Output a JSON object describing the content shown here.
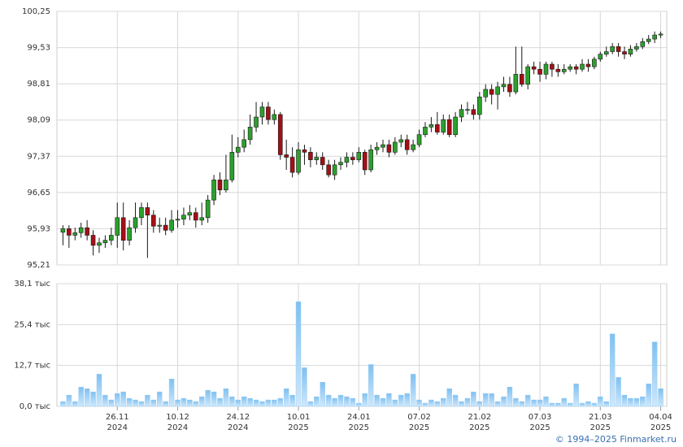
{
  "chart_data": [
    {
      "type": "candlestick",
      "colors": {
        "up": "#2ca02c",
        "down": "#a50f15",
        "outline": "#1a1a1a"
      },
      "xlim": [
        -1,
        100
      ],
      "ylim": [
        95.21,
        100.25
      ],
      "yticks": [
        {
          "value": 95.21,
          "label": "95,21"
        },
        {
          "value": 95.93,
          "label": "95,93"
        },
        {
          "value": 96.65,
          "label": "96,65"
        },
        {
          "value": 97.37,
          "label": "97,37"
        },
        {
          "value": 98.09,
          "label": "98,09"
        },
        {
          "value": 98.81,
          "label": "98,81"
        },
        {
          "value": 99.53,
          "label": "99,53"
        },
        {
          "value": 100.25,
          "label": "100,25"
        }
      ],
      "grid": true,
      "open": [
        95.86,
        95.93,
        95.8,
        95.85,
        95.95,
        95.8,
        95.6,
        95.65,
        95.7,
        95.8,
        96.15,
        95.7,
        95.95,
        96.15,
        96.35,
        96.2,
        95.98,
        96.0,
        95.9,
        96.1,
        96.12,
        96.2,
        96.25,
        96.1,
        96.15,
        96.5,
        96.9,
        96.7,
        96.9,
        97.45,
        97.55,
        97.7,
        97.95,
        98.15,
        98.35,
        98.1,
        98.2,
        97.4,
        97.35,
        97.05,
        97.5,
        97.45,
        97.3,
        97.35,
        97.2,
        97.0,
        97.2,
        97.25,
        97.35,
        97.3,
        97.45,
        97.1,
        97.5,
        97.55,
        97.6,
        97.45,
        97.65,
        97.7,
        97.5,
        97.6,
        97.8,
        97.95,
        98.0,
        97.85,
        98.1,
        97.8,
        98.15,
        98.3,
        98.3,
        98.2,
        98.55,
        98.7,
        98.6,
        98.75,
        98.8,
        98.65,
        99.0,
        98.8,
        99.15,
        99.1,
        99.0,
        99.2,
        99.1,
        99.05,
        99.1,
        99.15,
        99.1,
        99.2,
        99.15,
        99.3,
        99.4,
        99.45,
        99.55,
        99.45,
        99.4,
        99.5,
        99.55,
        99.65,
        99.7,
        99.78
      ],
      "high": [
        96.0,
        96.0,
        95.95,
        96.05,
        96.1,
        95.9,
        95.75,
        95.8,
        95.95,
        96.45,
        96.45,
        96.1,
        96.45,
        96.45,
        96.45,
        96.3,
        96.15,
        96.15,
        96.3,
        96.3,
        96.35,
        96.4,
        96.35,
        96.45,
        96.6,
        97.0,
        97.05,
        97.4,
        97.8,
        97.75,
        97.9,
        98.2,
        98.45,
        98.45,
        98.45,
        98.3,
        98.25,
        97.7,
        97.55,
        97.65,
        97.6,
        97.55,
        97.45,
        97.45,
        97.3,
        97.3,
        97.35,
        97.45,
        97.45,
        97.55,
        97.5,
        97.6,
        97.65,
        97.7,
        97.7,
        97.75,
        97.8,
        97.8,
        97.7,
        97.9,
        98.05,
        98.15,
        98.25,
        98.2,
        98.2,
        98.25,
        98.4,
        98.45,
        98.4,
        98.65,
        98.8,
        98.8,
        98.85,
        98.95,
        98.95,
        99.55,
        99.55,
        99.2,
        99.25,
        99.25,
        99.25,
        99.25,
        99.2,
        99.2,
        99.2,
        99.2,
        99.3,
        99.3,
        99.35,
        99.45,
        99.55,
        99.62,
        99.62,
        99.55,
        99.58,
        99.62,
        99.72,
        99.78,
        99.85,
        99.85
      ],
      "low": [
        95.6,
        95.55,
        95.7,
        95.75,
        95.7,
        95.4,
        95.45,
        95.55,
        95.6,
        95.55,
        95.5,
        95.6,
        95.85,
        96.0,
        95.35,
        95.85,
        95.85,
        95.8,
        95.85,
        95.95,
        96.0,
        96.1,
        95.95,
        96.0,
        96.05,
        96.4,
        96.6,
        96.65,
        96.85,
        97.35,
        97.45,
        97.6,
        97.85,
        98.0,
        98.0,
        98.0,
        97.3,
        97.1,
        96.95,
        97.0,
        97.2,
        97.15,
        97.2,
        97.1,
        96.95,
        96.9,
        97.1,
        97.15,
        97.2,
        97.25,
        97.0,
        97.05,
        97.4,
        97.45,
        97.35,
        97.4,
        97.55,
        97.4,
        97.45,
        97.55,
        97.75,
        97.85,
        97.8,
        97.8,
        97.75,
        97.75,
        98.05,
        98.2,
        98.1,
        98.1,
        98.45,
        98.4,
        98.3,
        98.65,
        98.55,
        98.6,
        98.75,
        98.7,
        99.0,
        98.85,
        98.9,
        98.95,
        98.95,
        99.0,
        99.05,
        99.0,
        99.05,
        99.05,
        99.1,
        99.25,
        99.35,
        99.4,
        99.35,
        99.3,
        99.35,
        99.45,
        99.5,
        99.6,
        99.62,
        99.72
      ],
      "close": [
        95.93,
        95.8,
        95.85,
        95.95,
        95.8,
        95.6,
        95.65,
        95.7,
        95.8,
        96.15,
        95.7,
        95.95,
        96.15,
        96.35,
        96.2,
        95.98,
        96.0,
        95.9,
        96.1,
        96.12,
        96.2,
        96.25,
        96.1,
        96.15,
        96.5,
        96.9,
        96.7,
        96.9,
        97.45,
        97.55,
        97.7,
        97.95,
        98.15,
        98.35,
        98.1,
        98.2,
        97.4,
        97.35,
        97.05,
        97.5,
        97.45,
        97.3,
        97.35,
        97.2,
        97.0,
        97.2,
        97.25,
        97.35,
        97.3,
        97.45,
        97.1,
        97.5,
        97.55,
        97.6,
        97.45,
        97.65,
        97.7,
        97.5,
        97.6,
        97.8,
        97.95,
        98.0,
        97.85,
        98.1,
        97.8,
        98.15,
        98.3,
        98.3,
        98.2,
        98.55,
        98.7,
        98.6,
        98.75,
        98.8,
        98.65,
        99.0,
        98.8,
        99.15,
        99.1,
        99.0,
        99.2,
        99.1,
        99.05,
        99.1,
        99.15,
        99.1,
        99.2,
        99.15,
        99.3,
        99.4,
        99.45,
        99.55,
        99.45,
        99.4,
        99.5,
        99.55,
        99.65,
        99.7,
        99.78,
        99.8
      ]
    },
    {
      "type": "bar",
      "color": "#9fd0f5",
      "xlim": [
        -1,
        100
      ],
      "ylim": [
        0,
        38.1
      ],
      "yticks": [
        {
          "value": 0,
          "label": "0,0 тыс"
        },
        {
          "value": 12.7,
          "label": "12,7 тыс"
        },
        {
          "value": 25.4,
          "label": "25,4 тыс"
        },
        {
          "value": 38.1,
          "label": "38,1 тыс"
        }
      ],
      "xticks": [
        {
          "value": 9,
          "label": "26.11 2024"
        },
        {
          "value": 19,
          "label": "10.12 2024"
        },
        {
          "value": 29,
          "label": "24.12 2024"
        },
        {
          "value": 39,
          "label": "10.01 2025"
        },
        {
          "value": 49,
          "label": "24.01 2025"
        },
        {
          "value": 59,
          "label": "07.02 2025"
        },
        {
          "value": 69,
          "label": "21.02 2025"
        },
        {
          "value": 79,
          "label": "07.03 2025"
        },
        {
          "value": 89,
          "label": "21.03 2025"
        },
        {
          "value": 99,
          "label": "04.04 2025"
        }
      ],
      "grid": true,
      "values": [
        1.5,
        3.5,
        1.5,
        6,
        5.5,
        4.5,
        10,
        3.5,
        2,
        4,
        4.5,
        2.5,
        2,
        1.5,
        3.5,
        2,
        4.5,
        1.5,
        8.5,
        2,
        2.5,
        2,
        1.5,
        3,
        5,
        4.5,
        2.5,
        5.5,
        3,
        2,
        3,
        2.5,
        2,
        1.5,
        2,
        2,
        2.5,
        5.5,
        3.5,
        32.5,
        12,
        1.5,
        3,
        7.5,
        3.5,
        2.5,
        3.5,
        3,
        2.5,
        1,
        4,
        13,
        3.5,
        2.5,
        4,
        2,
        3.5,
        4,
        10,
        2,
        1,
        2,
        1.5,
        2.5,
        5.5,
        3.5,
        1.5,
        2.5,
        4.5,
        1.5,
        4,
        4,
        1.5,
        3,
        6,
        2.5,
        1.5,
        3.5,
        2,
        2,
        3,
        1,
        1,
        2.5,
        1,
        7,
        1,
        1.5,
        1,
        3,
        1.5,
        22.5,
        9,
        3.5,
        2.5,
        2.5,
        3,
        7,
        20,
        5.5
      ],
      "source": "© 1994–2025 Finmarket.ru"
    }
  ]
}
